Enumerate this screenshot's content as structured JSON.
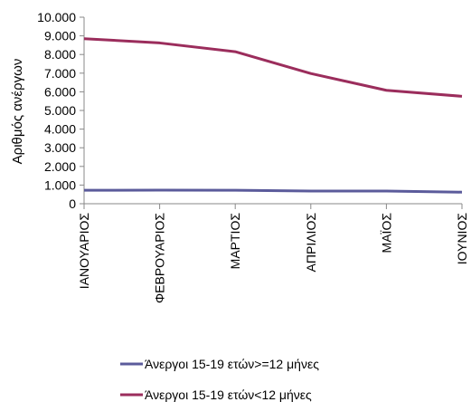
{
  "chart_data": {
    "type": "line",
    "ylabel": "Αριθμός ανέργων",
    "categories": [
      "ΙΑΝΟΥΑΡΙΟΣ",
      "ΦΕΒΡΟΥΑΡΙΟΣ",
      "ΜΑΡΤΙΟΣ",
      "ΑΠΡΙΛΙΟΣ",
      "ΜΑΪΟΣ",
      "ΙΟΥΝΙΟΣ"
    ],
    "ylim": [
      0,
      10000
    ],
    "yticks": [
      "0",
      "1.000",
      "2.000",
      "3.000",
      "4.000",
      "5.000",
      "6.000",
      "7.000",
      "8.000",
      "9.000",
      "10.000"
    ],
    "grid": false,
    "legend_position": "bottom",
    "series": [
      {
        "name": "Άνεργοι 15-19 ετών>=12 μήνες",
        "color": "#5b5b9b",
        "values": [
          720,
          730,
          720,
          680,
          680,
          620
        ]
      },
      {
        "name": "Άνεργοι 15-19 ετών<12 μήνες",
        "color": "#9b2d5c",
        "values": [
          8850,
          8620,
          8150,
          6980,
          6080,
          5760
        ]
      }
    ]
  }
}
